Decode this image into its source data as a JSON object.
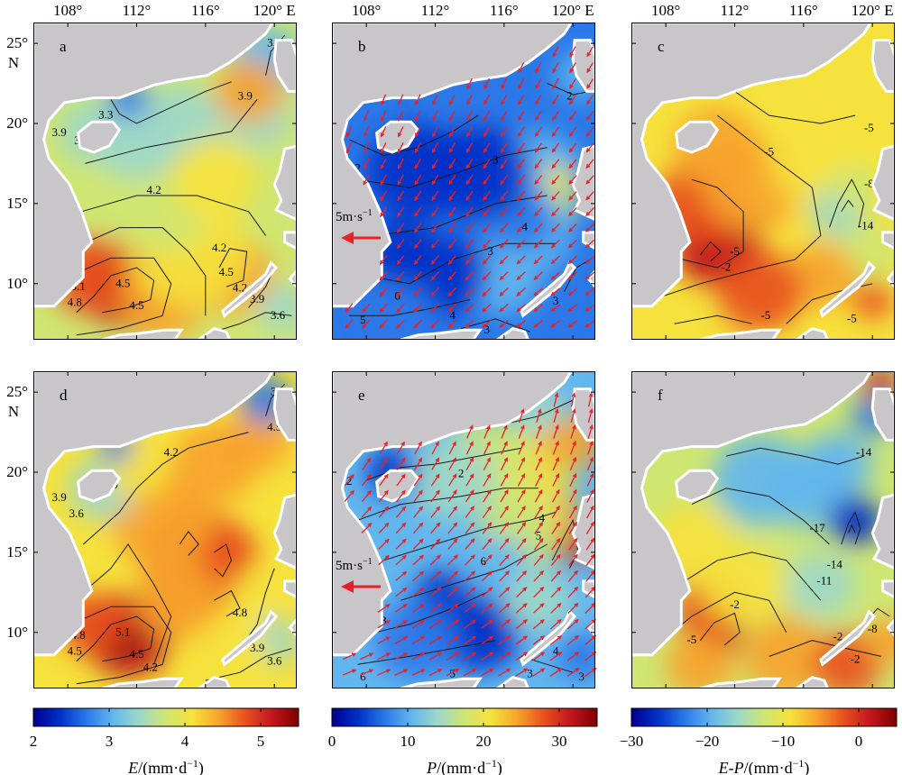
{
  "axes": {
    "lon_ticks": [
      "108°",
      "112°",
      "116°",
      "120° E"
    ],
    "lat_ticks": [
      "25°",
      "20°",
      "15°",
      "10°"
    ],
    "lat_unit": "N"
  },
  "panels": [
    {
      "id": "a",
      "letter": "a",
      "field": "E",
      "season": 1,
      "contour_labels": [
        "3.9",
        "3.6",
        "3.3",
        "3.9",
        "4.2",
        "4.2",
        "4.5",
        "5.1",
        "4.8",
        "4.5",
        "4.5",
        "4.2",
        "3.9",
        "3.6",
        "3.3"
      ]
    },
    {
      "id": "b",
      "letter": "b",
      "field": "P",
      "season": 1,
      "wind": true,
      "wind_label": "5m·s",
      "wind_label_sup": "−1",
      "contour_labels": [
        "2",
        "3",
        "2",
        "4",
        "3",
        "6",
        "5",
        "4",
        "3",
        "3"
      ]
    },
    {
      "id": "c",
      "letter": "c",
      "field": "EP",
      "season": 1,
      "contour_labels": [
        "-5",
        "-5",
        "-2",
        "-5",
        "-14",
        "-8",
        "-5",
        "-5"
      ]
    },
    {
      "id": "d",
      "letter": "d",
      "field": "E",
      "season": 2,
      "contour_labels": [
        "3.9",
        "3.6",
        "3.9",
        "4.2",
        "4.5",
        "4.8",
        "5.1",
        "4.8",
        "4.5",
        "4.5",
        "4.2",
        "3.9",
        "3.6",
        "3.3"
      ]
    },
    {
      "id": "e",
      "letter": "e",
      "field": "P",
      "season": 2,
      "wind": true,
      "wind_label": "5m·s",
      "wind_label_sup": "−1",
      "contour_labels": [
        "4",
        "2",
        "2",
        "4",
        "6",
        "5",
        "8",
        "6",
        "5",
        "4",
        "3",
        "5",
        "3"
      ]
    },
    {
      "id": "f",
      "letter": "f",
      "field": "EP",
      "season": 2,
      "contour_labels": [
        "-14",
        "-17",
        "-14",
        "-11",
        "-2",
        "-5",
        "-2",
        "-8",
        "-2"
      ]
    }
  ],
  "colorbars": [
    {
      "id": "E",
      "min": 2,
      "max": 5.5,
      "ticks": [
        "2",
        "3",
        "4",
        "5"
      ],
      "tick_values": [
        2,
        3,
        4,
        5
      ],
      "label_italic": "E",
      "label_rest": "/(mm·d",
      "label_sup": "−1",
      "label_close": ")"
    },
    {
      "id": "P",
      "min": 0,
      "max": 35,
      "ticks": [
        "0",
        "10",
        "20",
        "30"
      ],
      "tick_values": [
        0,
        10,
        20,
        30
      ],
      "label_italic": "P",
      "label_rest": "/(mm·d",
      "label_sup": "−1",
      "label_close": ")"
    },
    {
      "id": "EP",
      "min": -30,
      "max": 5,
      "ticks": [
        "−30",
        "−20",
        "−10",
        "0"
      ],
      "tick_values": [
        -30,
        -20,
        -10,
        0
      ],
      "label_italic": "E-P",
      "label_rest": "/(mm·d",
      "label_sup": "−1",
      "label_close": ")"
    }
  ],
  "colors": {
    "land": "#c8c6c8",
    "coast_white": "#ffffff",
    "contour": "#1a1a1a",
    "wind_arrow": "#e8202a",
    "colormap": [
      "#00008f",
      "#0030c8",
      "#2a78e8",
      "#62b6ee",
      "#9dd8c8",
      "#cfe672",
      "#f6e23c",
      "#f7a32c",
      "#e8501e",
      "#c3161e",
      "#7f0000"
    ]
  }
}
